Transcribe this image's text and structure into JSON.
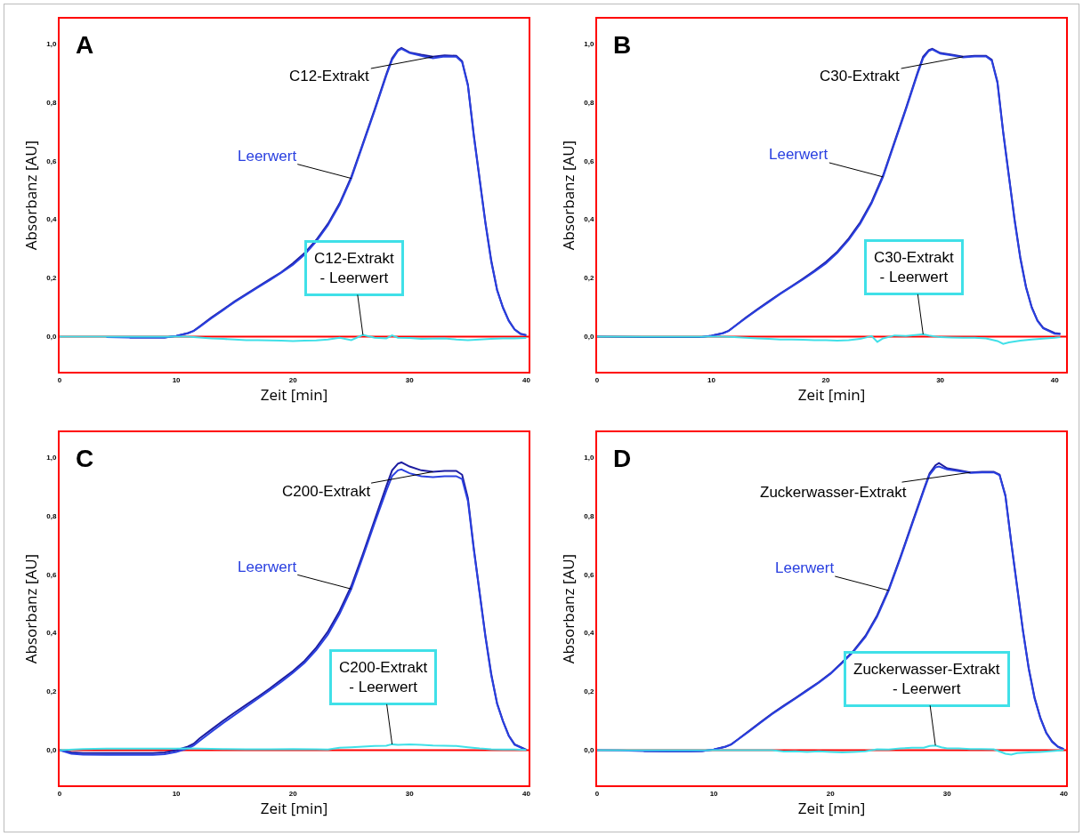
{
  "chart_data": [
    {
      "type": "line",
      "title": "A",
      "xlabel": "Zeit [min]",
      "ylabel": "Absorbanz [AU]",
      "xlim": [
        0,
        40.2
      ],
      "ylim": [
        -0.12,
        1.085
      ],
      "xticks": [
        0,
        10,
        20,
        30,
        40
      ],
      "yticks": [
        {
          "value": 0,
          "label": "0,0"
        },
        {
          "value": 0.2,
          "label": "0,2"
        },
        {
          "value": 0.4,
          "label": "0,4"
        },
        {
          "value": 0.6,
          "label": "0,6"
        },
        {
          "value": 0.8,
          "label": "0,8"
        },
        {
          "value": 1,
          "label": "1,0"
        }
      ],
      "ref_lines": [
        {
          "axis": "y",
          "value": 0,
          "color": "#ff0000"
        }
      ],
      "x": [
        4,
        6,
        8,
        9,
        10,
        11,
        11.5,
        12,
        13,
        14,
        15,
        16,
        17,
        18,
        19,
        20,
        21,
        22,
        23,
        24,
        25,
        26,
        27,
        28,
        28.5,
        29,
        29.3,
        30,
        31,
        32,
        33,
        34,
        34.5,
        35,
        35.5,
        36,
        36.5,
        37,
        37.5,
        38,
        38.5,
        39,
        39.5,
        40
      ],
      "series": [
        {
          "name": "C12-Extrakt",
          "color": "#1c1ca0",
          "values": [
            null,
            -0.003,
            -0.003,
            -0.003,
            0.002,
            0.012,
            0.02,
            0.035,
            0.065,
            0.092,
            0.12,
            0.145,
            0.17,
            0.195,
            0.22,
            0.25,
            0.285,
            0.33,
            0.385,
            0.455,
            0.545,
            0.66,
            0.775,
            0.895,
            0.95,
            0.978,
            0.985,
            0.97,
            0.962,
            0.955,
            0.96,
            0.958,
            0.94,
            0.86,
            0.69,
            0.54,
            0.39,
            0.26,
            0.16,
            0.1,
            0.055,
            0.025,
            0.01,
            0.005
          ]
        },
        {
          "name": "Leerwert",
          "color": "#2a40e0",
          "values": [
            -0.002,
            -0.003,
            -0.003,
            -0.003,
            0.002,
            0.011,
            0.019,
            0.033,
            0.062,
            0.09,
            0.118,
            0.143,
            0.168,
            0.192,
            0.218,
            0.245,
            0.28,
            0.325,
            0.38,
            0.45,
            0.54,
            0.655,
            0.77,
            0.89,
            0.945,
            0.975,
            0.982,
            0.968,
            0.958,
            0.95,
            0.956,
            0.955,
            0.937,
            0.855,
            0.685,
            0.535,
            0.385,
            0.255,
            0.158,
            0.098,
            0.053,
            0.024,
            0.009,
            0.004
          ]
        },
        {
          "name": "C12-Extrakt\n- Leerwert",
          "color": "#40e0e8",
          "x": [
            0,
            4,
            8,
            11,
            12,
            13,
            14,
            15,
            16,
            17,
            18,
            19,
            20,
            21,
            22,
            23,
            24,
            25,
            26,
            27,
            28,
            28.5,
            29,
            30,
            31,
            32,
            33,
            34,
            35,
            36,
            37,
            38,
            39,
            40
          ],
          "values": [
            0,
            0,
            0,
            0,
            -0.003,
            -0.006,
            -0.008,
            -0.01,
            -0.012,
            -0.012,
            -0.013,
            -0.014,
            -0.015,
            -0.014,
            -0.013,
            -0.01,
            -0.004,
            -0.012,
            0.006,
            -0.004,
            -0.006,
            0.004,
            -0.004,
            -0.005,
            -0.008,
            -0.007,
            -0.006,
            -0.01,
            -0.012,
            -0.01,
            -0.008,
            -0.006,
            -0.006,
            -0.005
          ]
        }
      ]
    },
    {
      "type": "line",
      "title": "B",
      "xlabel": "Zeit [min]",
      "ylabel": "Absorbanz [AU]",
      "xlim": [
        0,
        41
      ],
      "ylim": [
        -0.12,
        1.085
      ],
      "xticks": [
        0,
        10,
        20,
        30,
        40
      ],
      "yticks": [
        {
          "value": 0,
          "label": "0,0"
        },
        {
          "value": 0.2,
          "label": "0,2"
        },
        {
          "value": 0.4,
          "label": "0,4"
        },
        {
          "value": 0.6,
          "label": "0,6"
        },
        {
          "value": 0.8,
          "label": "0,8"
        },
        {
          "value": 1,
          "label": "1,0"
        }
      ],
      "ref_lines": [
        {
          "axis": "y",
          "value": 0,
          "color": "#ff0000"
        }
      ],
      "x": [
        0,
        2,
        4,
        6,
        8,
        9,
        10,
        11,
        11.5,
        12,
        13,
        14,
        15,
        16,
        17,
        18,
        19,
        20,
        21,
        22,
        23,
        24,
        25,
        26,
        27,
        28,
        28.5,
        29,
        29.3,
        30,
        31,
        32,
        33,
        34,
        34.5,
        35,
        35.5,
        36,
        36.5,
        37,
        37.5,
        38,
        38.5,
        39,
        40,
        40.5
      ],
      "series": [
        {
          "name": "C30-Extrakt",
          "color": "#1c1ca0",
          "values": [
            0,
            -0.001,
            -0.002,
            -0.002,
            -0.002,
            -0.002,
            0.003,
            0.012,
            0.02,
            0.035,
            0.065,
            0.093,
            0.12,
            0.147,
            0.172,
            0.198,
            0.225,
            0.255,
            0.29,
            0.335,
            0.39,
            0.46,
            0.55,
            0.665,
            0.78,
            0.9,
            0.955,
            0.978,
            0.982,
            0.968,
            0.962,
            0.955,
            0.958,
            0.958,
            0.945,
            0.87,
            0.7,
            0.55,
            0.4,
            0.27,
            0.17,
            0.1,
            0.055,
            0.03,
            0.012,
            0.01
          ]
        },
        {
          "name": "Leerwert",
          "color": "#2a40e0",
          "values": [
            null,
            null,
            null,
            null,
            null,
            -0.002,
            0.003,
            0.011,
            0.019,
            0.034,
            0.063,
            0.091,
            0.118,
            0.145,
            0.17,
            0.195,
            0.222,
            0.25,
            0.286,
            0.33,
            0.385,
            0.455,
            0.545,
            0.66,
            0.775,
            0.895,
            0.95,
            0.975,
            0.98,
            0.966,
            0.96,
            0.953,
            0.956,
            0.956,
            0.942,
            0.865,
            0.695,
            0.545,
            0.395,
            0.265,
            0.166,
            0.098,
            0.053,
            0.028,
            0.01,
            0.008
          ]
        },
        {
          "name": "C30-Extrakt\n- Leerwert",
          "color": "#40e0e8",
          "x": [
            0,
            4,
            8,
            11,
            12,
            13,
            14,
            15,
            16,
            17,
            18,
            19,
            20,
            21,
            22,
            23,
            24,
            24.5,
            25,
            26,
            27,
            28,
            28.5,
            29,
            30,
            31,
            32,
            33,
            34,
            35,
            35.5,
            36,
            37,
            38,
            39,
            40,
            40.5
          ],
          "values": [
            0,
            0,
            0,
            0,
            -0.002,
            -0.004,
            -0.006,
            -0.008,
            -0.01,
            -0.01,
            -0.011,
            -0.012,
            -0.012,
            -0.014,
            -0.012,
            -0.008,
            0.002,
            -0.018,
            -0.006,
            0.004,
            0.002,
            0.006,
            0.008,
            0.004,
            -0.002,
            -0.003,
            -0.004,
            -0.004,
            -0.006,
            -0.015,
            -0.025,
            -0.02,
            -0.014,
            -0.01,
            -0.007,
            -0.004,
            -0.002
          ]
        }
      ]
    },
    {
      "type": "line",
      "title": "C",
      "xlabel": "Zeit [min]",
      "ylabel": "Absorbanz [AU]",
      "xlim": [
        0,
        40.2
      ],
      "ylim": [
        -0.12,
        1.085
      ],
      "xticks": [
        0,
        10,
        20,
        30,
        40
      ],
      "yticks": [
        {
          "value": 0,
          "label": "0,0"
        },
        {
          "value": 0.2,
          "label": "0,2"
        },
        {
          "value": 0.4,
          "label": "0,4"
        },
        {
          "value": 0.6,
          "label": "0,6"
        },
        {
          "value": 0.8,
          "label": "0,8"
        },
        {
          "value": 1,
          "label": "1,0"
        }
      ],
      "ref_lines": [
        {
          "axis": "y",
          "value": 0,
          "color": "#ff0000"
        }
      ],
      "x": [
        0,
        1,
        2,
        4,
        6,
        8,
        9,
        10,
        11,
        11.5,
        12,
        13,
        14,
        15,
        16,
        17,
        18,
        19,
        20,
        21,
        22,
        23,
        24,
        25,
        26,
        27,
        28,
        28.5,
        29,
        29.3,
        30,
        31,
        32,
        33,
        34,
        34.5,
        35,
        35.5,
        36,
        36.5,
        37,
        37.5,
        38,
        38.5,
        39,
        40
      ],
      "series": [
        {
          "name": "C200-Extrakt",
          "color": "#1c1ca0",
          "values": [
            0,
            -0.008,
            -0.01,
            -0.01,
            -0.01,
            -0.01,
            -0.008,
            0.0,
            0.012,
            0.022,
            0.04,
            0.07,
            0.1,
            0.128,
            0.155,
            0.182,
            0.21,
            0.24,
            0.27,
            0.305,
            0.35,
            0.405,
            0.475,
            0.56,
            0.67,
            0.785,
            0.9,
            0.955,
            0.978,
            0.982,
            0.968,
            0.955,
            0.95,
            0.953,
            0.953,
            0.94,
            0.86,
            0.69,
            0.54,
            0.39,
            0.26,
            0.16,
            0.1,
            0.05,
            0.02,
            0.002
          ]
        },
        {
          "name": "Leerwert",
          "color": "#2a40e0",
          "values": [
            0,
            -0.012,
            -0.015,
            -0.016,
            -0.016,
            -0.016,
            -0.014,
            -0.006,
            0.006,
            0.016,
            0.032,
            0.062,
            0.092,
            0.12,
            0.148,
            0.176,
            0.204,
            0.233,
            0.264,
            0.298,
            0.342,
            0.395,
            0.465,
            0.55,
            0.66,
            0.775,
            0.885,
            0.935,
            0.955,
            0.958,
            0.945,
            0.935,
            0.932,
            0.935,
            0.935,
            0.925,
            0.85,
            0.685,
            0.535,
            0.385,
            0.255,
            0.158,
            0.098,
            0.048,
            0.018,
            0.0
          ]
        },
        {
          "name": "C200-Extrakt\n- Leerwert",
          "color": "#40e0e8",
          "x": [
            0,
            2,
            4,
            6,
            8,
            10,
            11,
            12,
            14,
            16,
            18,
            20,
            22,
            23,
            24,
            25,
            26,
            27,
            28,
            28.5,
            29,
            30,
            31,
            32,
            33,
            34,
            35,
            36,
            37,
            38,
            39,
            40
          ],
          "values": [
            0,
            0.004,
            0.005,
            0.005,
            0.005,
            0.005,
            0.006,
            0.005,
            0.004,
            0.003,
            0.003,
            0.004,
            0.003,
            0.002,
            0.008,
            0.01,
            0.012,
            0.014,
            0.015,
            0.02,
            0.018,
            0.02,
            0.018,
            0.016,
            0.015,
            0.014,
            0.01,
            0.006,
            0.003,
            0.002,
            0.002,
            0.001
          ]
        }
      ]
    },
    {
      "type": "line",
      "title": "D",
      "xlabel": "Zeit [min]",
      "ylabel": "Absorbanz [AU]",
      "xlim": [
        0,
        40.2
      ],
      "ylim": [
        -0.12,
        1.085
      ],
      "xticks": [
        0,
        10,
        20,
        30,
        40
      ],
      "yticks": [
        {
          "value": 0,
          "label": "0,0"
        },
        {
          "value": 0.2,
          "label": "0,2"
        },
        {
          "value": 0.4,
          "label": "0,4"
        },
        {
          "value": 0.6,
          "label": "0,6"
        },
        {
          "value": 0.8,
          "label": "0,8"
        },
        {
          "value": 1,
          "label": "1,0"
        }
      ],
      "ref_lines": [
        {
          "axis": "y",
          "value": 0,
          "color": "#ff0000"
        }
      ],
      "x": [
        0,
        2,
        4,
        6,
        8,
        9,
        10,
        11,
        11.5,
        12,
        13,
        14,
        15,
        16,
        17,
        18,
        19,
        20,
        21,
        22,
        23,
        24,
        25,
        26,
        27,
        28,
        28.5,
        29,
        29.3,
        30,
        31,
        32,
        33,
        34,
        34.5,
        35,
        35.5,
        36,
        36.5,
        37,
        37.5,
        38,
        38.5,
        39,
        39.5,
        40
      ],
      "series": [
        {
          "name": "Zuckerwasser-Extrakt",
          "color": "#1c1ca0",
          "values": [
            null,
            null,
            -0.003,
            -0.004,
            -0.004,
            -0.003,
            0.002,
            0.012,
            0.02,
            0.035,
            0.065,
            0.095,
            0.125,
            0.152,
            0.178,
            0.205,
            0.232,
            0.262,
            0.3,
            0.34,
            0.39,
            0.46,
            0.55,
            0.66,
            0.775,
            0.89,
            0.945,
            0.972,
            0.98,
            0.962,
            0.955,
            0.948,
            0.95,
            0.95,
            0.94,
            0.87,
            0.71,
            0.56,
            0.41,
            0.28,
            0.18,
            0.11,
            0.06,
            0.03,
            0.012,
            0.004
          ]
        },
        {
          "name": "Leerwert",
          "color": "#2a40e0",
          "values": [
            0,
            -0.001,
            -0.003,
            -0.004,
            -0.004,
            -0.003,
            0.002,
            0.011,
            0.019,
            0.034,
            0.063,
            0.093,
            0.123,
            0.15,
            0.176,
            0.203,
            0.23,
            0.26,
            0.297,
            0.337,
            0.386,
            0.455,
            0.545,
            0.655,
            0.77,
            0.885,
            0.94,
            0.965,
            0.968,
            0.958,
            0.952,
            0.946,
            0.948,
            0.948,
            0.938,
            0.866,
            0.706,
            0.556,
            0.406,
            0.276,
            0.176,
            0.108,
            0.058,
            0.028,
            0.011,
            0.003
          ]
        },
        {
          "name": "Zuckerwasser-Extrakt\n- Leerwert",
          "color": "#40e0e8",
          "x": [
            0,
            4,
            8,
            12,
            15,
            16,
            17,
            18,
            19,
            20,
            21,
            22,
            23,
            24,
            25,
            26,
            27,
            28,
            28.5,
            29,
            29.5,
            30,
            31,
            32,
            33,
            34,
            35,
            35.5,
            36,
            37,
            38,
            39,
            40
          ],
          "values": [
            0,
            0,
            0,
            0,
            0,
            -0.005,
            -0.004,
            -0.006,
            -0.004,
            -0.006,
            -0.008,
            -0.006,
            -0.004,
            0.003,
            0.002,
            0.006,
            0.008,
            0.008,
            0.014,
            0.016,
            0.01,
            0.006,
            0.006,
            0.004,
            0.004,
            0.003,
            -0.012,
            -0.015,
            -0.01,
            -0.008,
            -0.006,
            -0.003,
            0
          ]
        }
      ]
    }
  ]
}
